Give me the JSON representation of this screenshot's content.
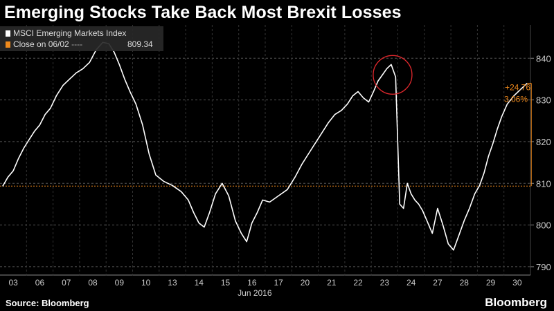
{
  "title": "Emerging Stocks Take Back Most Brexit Losses",
  "source": "Source: Bloomberg",
  "brand": "Bloomberg",
  "legend": {
    "series_label": "MSCI Emerging Markets Index",
    "ref_label": "Close on 06/02",
    "ref_dash": "----",
    "ref_value": "809.34"
  },
  "annotation": {
    "change_abs": "+24.76",
    "change_pct": "3.06%"
  },
  "colors": {
    "background": "#000000",
    "line": "#ffffff",
    "reference": "#f08a1c",
    "circle": "#e0282d",
    "grid": "#555555"
  },
  "chart_data": {
    "type": "line",
    "title": "Emerging Stocks Take Back Most Brexit Losses",
    "xlabel": "Jun 2016",
    "ylabel": "",
    "x_ticks": [
      "03",
      "06",
      "07",
      "08",
      "09",
      "10",
      "13",
      "14",
      "15",
      "16",
      "17",
      "20",
      "21",
      "22",
      "23",
      "24",
      "27",
      "28",
      "29",
      "30"
    ],
    "ylim": [
      788,
      848
    ],
    "y_ticks": [
      790,
      800,
      810,
      820,
      830,
      840
    ],
    "grid": "horizontal dashed",
    "legend_position": "top-left",
    "reference_line": {
      "label": "Close on 06/02",
      "value": 809.34
    },
    "series": [
      {
        "name": "MSCI Emerging Markets Index",
        "points": [
          [
            "03",
            809.3
          ],
          [
            "03",
            811.5
          ],
          [
            "03",
            813.0
          ],
          [
            "03",
            816.0
          ],
          [
            "03",
            818.5
          ],
          [
            "06",
            820.5
          ],
          [
            "06",
            822.5
          ],
          [
            "06",
            824.0
          ],
          [
            "06",
            826.5
          ],
          [
            "06",
            828.0
          ],
          [
            "07",
            831.0
          ],
          [
            "07",
            833.5
          ],
          [
            "07",
            835.0
          ],
          [
            "07",
            836.5
          ],
          [
            "08",
            837.5
          ],
          [
            "08",
            839.0
          ],
          [
            "08",
            842.0
          ],
          [
            "08",
            843.8
          ],
          [
            "09",
            843.5
          ],
          [
            "09",
            841.5
          ],
          [
            "09",
            838.5
          ],
          [
            "09",
            835.0
          ],
          [
            "09",
            832.0
          ],
          [
            "10",
            829.0
          ],
          [
            "10",
            824.0
          ],
          [
            "10",
            817.0
          ],
          [
            "10",
            812.0
          ],
          [
            "13",
            810.5
          ],
          [
            "13",
            809.5
          ],
          [
            "13",
            808.0
          ],
          [
            "14",
            806.0
          ],
          [
            "14",
            803.0
          ],
          [
            "14",
            800.5
          ],
          [
            "14",
            799.5
          ],
          [
            "14",
            803.0
          ],
          [
            "15",
            807.5
          ],
          [
            "15",
            810.0
          ],
          [
            "15",
            807.0
          ],
          [
            "15",
            801.0
          ],
          [
            "16",
            798.0
          ],
          [
            "16",
            796.0
          ],
          [
            "16",
            800.5
          ],
          [
            "16",
            803.0
          ],
          [
            "16",
            806.0
          ],
          [
            "17",
            805.5
          ],
          [
            "17",
            807.0
          ],
          [
            "17",
            808.5
          ],
          [
            "20",
            811.5
          ],
          [
            "20",
            814.5
          ],
          [
            "20",
            817.0
          ],
          [
            "20",
            819.5
          ],
          [
            "21",
            822.0
          ],
          [
            "21",
            824.5
          ],
          [
            "21",
            826.5
          ],
          [
            "21",
            827.5
          ],
          [
            "22",
            829.0
          ],
          [
            "22",
            831.0
          ],
          [
            "22",
            832.0
          ],
          [
            "22",
            830.5
          ],
          [
            "22",
            829.5
          ],
          [
            "23",
            832.0
          ],
          [
            "23",
            834.5
          ],
          [
            "23",
            836.0
          ],
          [
            "23",
            837.5
          ],
          [
            "23",
            838.5
          ],
          [
            "23",
            835.5
          ],
          [
            "24",
            805.0
          ],
          [
            "24",
            804.0
          ],
          [
            "24",
            810.0
          ],
          [
            "24",
            807.5
          ],
          [
            "24",
            806.0
          ],
          [
            "24",
            805.0
          ],
          [
            "24",
            803.5
          ],
          [
            "27",
            801.0
          ],
          [
            "27",
            798.0
          ],
          [
            "27",
            804.0
          ],
          [
            "27",
            800.0
          ],
          [
            "27",
            795.5
          ],
          [
            "28",
            794.0
          ],
          [
            "28",
            797.5
          ],
          [
            "28",
            801.0
          ],
          [
            "28",
            804.0
          ],
          [
            "28",
            807.5
          ],
          [
            "29",
            809.5
          ],
          [
            "29",
            812.5
          ],
          [
            "29",
            816.5
          ],
          [
            "29",
            819.5
          ],
          [
            "29",
            823.0
          ],
          [
            "29",
            826.0
          ],
          [
            "30",
            829.0
          ],
          [
            "30",
            831.0
          ],
          [
            "30",
            832.5
          ],
          [
            "30",
            834.0
          ]
        ]
      }
    ]
  }
}
